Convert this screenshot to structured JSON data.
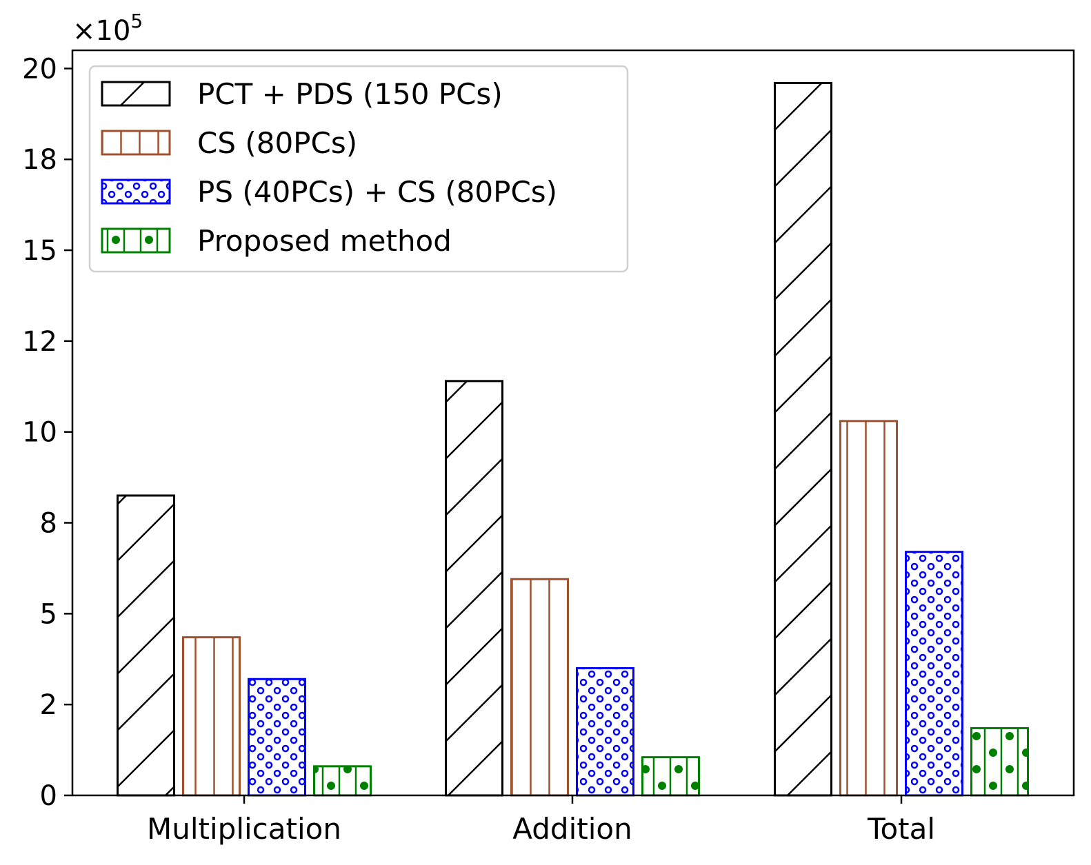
{
  "chart_data": {
    "type": "bar",
    "title": "",
    "xlabel": "",
    "ylabel": "",
    "y_multiplier_label": "×10",
    "y_multiplier_exponent": "5",
    "categories": [
      "Multiplication",
      "Addition",
      "Total"
    ],
    "y_ticks": [
      0,
      2.5,
      5.0,
      7.5,
      10.0,
      12.5,
      15.0,
      17.5,
      20.0
    ],
    "y_tick_labels": [
      "0",
      "2",
      "5",
      "8",
      "10",
      "12",
      "15",
      "18",
      "20"
    ],
    "ylim": [
      0,
      20.5
    ],
    "legend_position": "top-left",
    "series": [
      {
        "name": "PCT + PDS (150 PCs)",
        "values": [
          8.25,
          11.4,
          19.6
        ],
        "color": "#000000",
        "hatch": "diagonal"
      },
      {
        "name": "CS (80PCs)",
        "values": [
          4.35,
          5.95,
          10.3
        ],
        "color": "#a0522d",
        "hatch": "vertical"
      },
      {
        "name": "PS (40PCs) + CS (80PCs)",
        "values": [
          3.2,
          3.5,
          6.7
        ],
        "color": "#0000ff",
        "hatch": "rings"
      },
      {
        "name": "Proposed method",
        "values": [
          0.8,
          1.05,
          1.85
        ],
        "color": "#008000",
        "hatch": "vertical-dots"
      }
    ]
  }
}
